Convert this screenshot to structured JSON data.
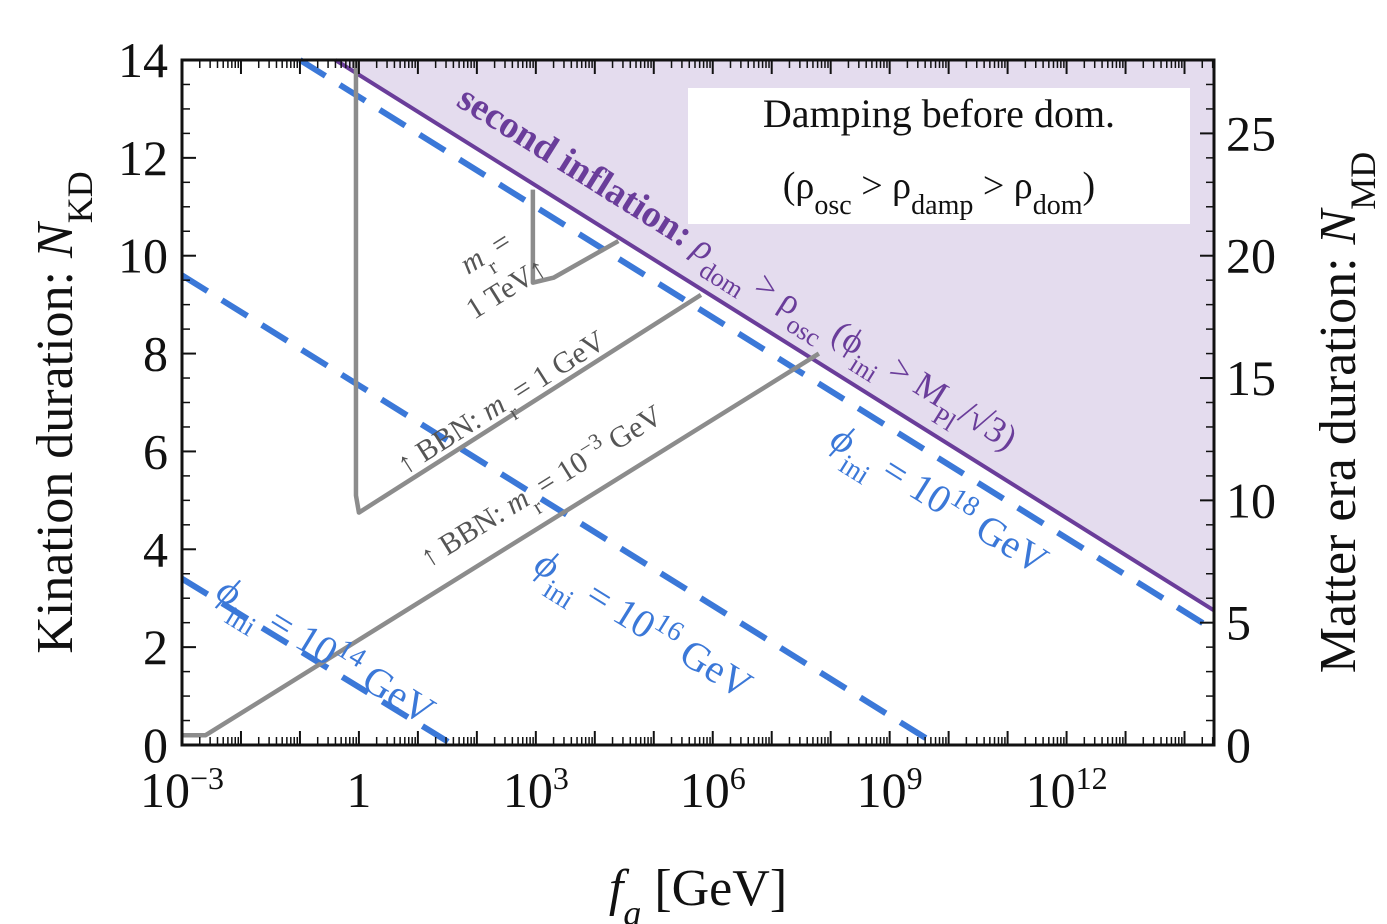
{
  "chart_data": {
    "type": "line",
    "xlabel": "f_a [GeV]",
    "ylabel": "Kination duration: N_KD",
    "y2label": "Matter era duration: N_MD",
    "x_scale": "log10",
    "xlim": [
      -3,
      14.5
    ],
    "ylim": [
      0,
      14
    ],
    "y2lim": [
      0,
      28
    ],
    "x_ticks": [
      {
        "v": -3,
        "base": "10",
        "exp": "−3"
      },
      {
        "v": 0,
        "base": "1",
        "exp": ""
      },
      {
        "v": 3,
        "base": "10",
        "exp": "3"
      },
      {
        "v": 6,
        "base": "10",
        "exp": "6"
      },
      {
        "v": 9,
        "base": "10",
        "exp": "9"
      },
      {
        "v": 12,
        "base": "10",
        "exp": "12"
      }
    ],
    "y_ticks": [
      "0",
      "2",
      "4",
      "6",
      "8",
      "10",
      "12",
      "14"
    ],
    "y2_ticks": [
      "0",
      "5",
      "10",
      "15",
      "20",
      "25"
    ],
    "inset_box": {
      "line1": "Damping before dom.",
      "line2": "(ρosc > ρdamp > ρdom)"
    },
    "series": [
      {
        "key": "second_inflation",
        "color": "#6a3d9a",
        "style": "solid",
        "fill": "#e4dcee",
        "points": [
          [
            -0.4,
            14.0
          ],
          [
            14.5,
            2.75
          ]
        ]
      },
      {
        "key": "phi18",
        "color": "#3b78d8",
        "style": "dashed",
        "points": [
          [
            -1.0,
            14.0
          ],
          [
            14.5,
            2.35
          ]
        ]
      },
      {
        "key": "phi16",
        "color": "#3b78d8",
        "style": "dashed",
        "points": [
          [
            -3.0,
            9.6
          ],
          [
            9.8,
            0.0
          ]
        ]
      },
      {
        "key": "phi14",
        "color": "#3b78d8",
        "style": "dashed",
        "points": [
          [
            -3.0,
            3.4
          ],
          [
            1.6,
            0.0
          ]
        ]
      },
      {
        "key": "bbn_1meV",
        "color": "#8c8c8c",
        "style": "solid",
        "points": [
          [
            -3.0,
            0.2
          ],
          [
            -2.6,
            0.2
          ],
          [
            7.8,
            8.0
          ]
        ]
      },
      {
        "key": "bbn_1GeV",
        "color": "#8c8c8c",
        "style": "solid",
        "points": [
          [
            -0.05,
            14.0
          ],
          [
            -0.05,
            5.1
          ],
          [
            0.0,
            4.75
          ],
          [
            5.8,
            9.2
          ]
        ]
      },
      {
        "key": "mr_1TeV",
        "color": "#8c8c8c",
        "style": "solid",
        "points": [
          [
            2.95,
            11.35
          ],
          [
            2.95,
            9.45
          ],
          [
            3.3,
            9.55
          ],
          [
            4.4,
            10.3
          ]
        ]
      }
    ],
    "annotations": {
      "second_inflation_bold": "second inflation:",
      "second_inflation_rest": "ρdom > ρosc (ϕini > MPl/√3)",
      "phi18": "ϕini = 10^18 GeV",
      "phi16": "ϕini = 10^16 GeV",
      "phi14": "ϕini = 10^14 GeV",
      "bbn_1GeV": "↑ BBN: mr = 1 GeV",
      "bbn_1meV": "↑ BBN: mr = 10^−3 GeV",
      "mr_1TeV_a": "mr =",
      "mr_1TeV_b": "1 TeV↑"
    }
  }
}
